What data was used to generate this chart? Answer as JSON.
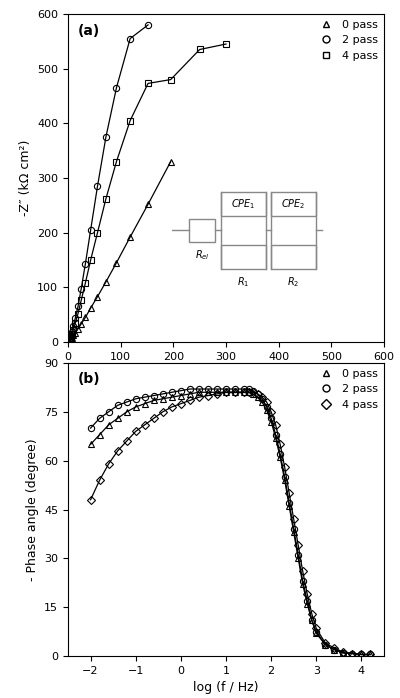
{
  "panel_a": {
    "title": "(a)",
    "ylabel": "-Z″ (kΩ cm²)",
    "xlim": [
      0,
      600
    ],
    "ylim": [
      0,
      600
    ],
    "xticks": [
      0,
      100,
      200,
      300,
      400,
      500,
      600
    ],
    "yticks": [
      0,
      100,
      200,
      300,
      400,
      500,
      600
    ],
    "series": [
      {
        "label": "0 pass",
        "marker": "^",
        "x": [
          1,
          2,
          3,
          5,
          7,
          10,
          14,
          19,
          25,
          33,
          43,
          56,
          72,
          92,
          118,
          152,
          195
        ],
        "y": [
          1,
          2,
          3,
          5,
          8,
          12,
          17,
          24,
          33,
          45,
          62,
          83,
          110,
          145,
          192,
          252,
          330
        ]
      },
      {
        "label": "2 pass",
        "marker": "o",
        "x": [
          1,
          2,
          3,
          5,
          7,
          10,
          14,
          19,
          25,
          33,
          43,
          56,
          72,
          92,
          118,
          152
        ],
        "y": [
          1,
          3,
          6,
          11,
          18,
          29,
          44,
          65,
          97,
          143,
          205,
          285,
          375,
          465,
          555,
          580
        ]
      },
      {
        "label": "4 pass",
        "marker": "s",
        "x": [
          1,
          2,
          3,
          5,
          7,
          10,
          14,
          19,
          25,
          33,
          43,
          56,
          72,
          92,
          118,
          152,
          195,
          250,
          300
        ],
        "y": [
          1,
          2,
          4,
          8,
          14,
          22,
          35,
          52,
          76,
          108,
          150,
          200,
          262,
          330,
          405,
          473,
          480,
          535,
          545
        ]
      }
    ]
  },
  "panel_b": {
    "title": "(b)",
    "xlabel": "log (f / Hz)",
    "ylabel": "- Phase angle (degree)",
    "xlim": [
      -2.5,
      4.5
    ],
    "ylim": [
      0,
      90
    ],
    "xticks": [
      -2,
      -1,
      0,
      1,
      2,
      3,
      4
    ],
    "yticks": [
      0,
      15,
      30,
      45,
      60,
      75,
      90
    ],
    "series": [
      {
        "label": "0 pass",
        "marker": "^",
        "x": [
          -2.0,
          -1.8,
          -1.6,
          -1.4,
          -1.2,
          -1.0,
          -0.8,
          -0.6,
          -0.4,
          -0.2,
          0.0,
          0.2,
          0.4,
          0.6,
          0.8,
          1.0,
          1.2,
          1.4,
          1.5,
          1.6,
          1.7,
          1.8,
          1.9,
          2.0,
          2.1,
          2.2,
          2.3,
          2.4,
          2.5,
          2.6,
          2.7,
          2.8,
          2.9,
          3.0,
          3.2,
          3.4,
          3.6,
          3.8,
          4.0,
          4.2
        ],
        "y": [
          65,
          68,
          71,
          73,
          75,
          76.5,
          77.5,
          78.5,
          79,
          79.5,
          80,
          80.5,
          81,
          81,
          81,
          81,
          81,
          81,
          81,
          80.5,
          79.5,
          78,
          75.5,
          72,
          67,
          61,
          54,
          46,
          38,
          30,
          22,
          16,
          11,
          7,
          3.5,
          2,
          1,
          0.8,
          0.5,
          0.5
        ]
      },
      {
        "label": "2 pass",
        "marker": "o",
        "x": [
          -2.0,
          -1.8,
          -1.6,
          -1.4,
          -1.2,
          -1.0,
          -0.8,
          -0.6,
          -0.4,
          -0.2,
          0.0,
          0.2,
          0.4,
          0.6,
          0.8,
          1.0,
          1.2,
          1.4,
          1.5,
          1.6,
          1.7,
          1.8,
          1.9,
          2.0,
          2.1,
          2.2,
          2.3,
          2.4,
          2.5,
          2.6,
          2.7,
          2.8,
          2.9,
          3.0,
          3.2,
          3.4,
          3.6,
          3.8,
          4.0,
          4.2
        ],
        "y": [
          70,
          73,
          75,
          77,
          78,
          79,
          79.5,
          80,
          80.5,
          81,
          81.5,
          82,
          82,
          82,
          82,
          82,
          82,
          82,
          82,
          81.5,
          80.5,
          79,
          76.5,
          73,
          68,
          62,
          55,
          47,
          39,
          31,
          23,
          17,
          11,
          7.5,
          3.5,
          2,
          1,
          0.8,
          0.5,
          0.5
        ]
      },
      {
        "label": "4 pass",
        "marker": "D",
        "x": [
          -2.0,
          -1.8,
          -1.6,
          -1.4,
          -1.2,
          -1.0,
          -0.8,
          -0.6,
          -0.4,
          -0.2,
          0.0,
          0.2,
          0.4,
          0.6,
          0.8,
          1.0,
          1.2,
          1.4,
          1.5,
          1.6,
          1.7,
          1.8,
          1.9,
          2.0,
          2.1,
          2.2,
          2.3,
          2.4,
          2.5,
          2.6,
          2.7,
          2.8,
          2.9,
          3.0,
          3.2,
          3.4,
          3.6,
          3.8,
          4.0,
          4.2
        ],
        "y": [
          48,
          54,
          59,
          63,
          66,
          69,
          71,
          73,
          75,
          76.5,
          77.5,
          78.5,
          79.5,
          80,
          80.5,
          81,
          81,
          81,
          81,
          81,
          80.5,
          79.5,
          78,
          75,
          71,
          65,
          58,
          50,
          42,
          34,
          26,
          19,
          13,
          8.5,
          4,
          2.5,
          1.2,
          0.8,
          0.5,
          0.5
        ]
      }
    ]
  },
  "line_color": "black",
  "marker_size": 4.5,
  "line_width": 0.9,
  "circuit": {
    "gc": "#888888",
    "lw": 1.0
  }
}
